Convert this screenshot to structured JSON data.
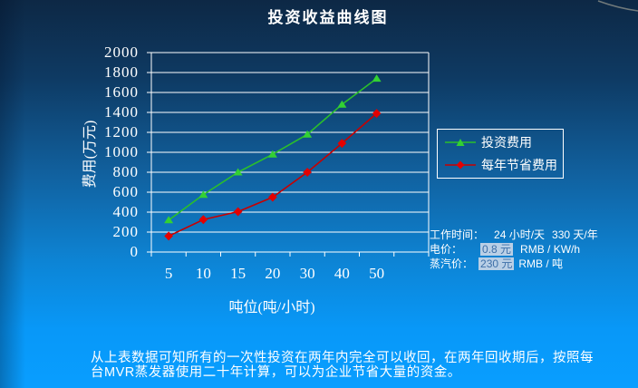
{
  "slide": {
    "title": "投资收益曲线图",
    "footer_text": "从上表数据可知所有的一次性投资在两年内完全可以收回，在两年回收期后，按照每\n台MVR蒸发器使用二十年计算，可以为企业节省大量的资金。"
  },
  "chart_data": {
    "type": "line",
    "title": "投资收益曲线图",
    "categories": [
      "5",
      "10",
      "15",
      "20",
      "30",
      "40",
      "50"
    ],
    "series": [
      {
        "name": "投资费用",
        "color": "#33d133",
        "line_color": "#2bbf2b",
        "marker": "triangle",
        "values": [
          320,
          575,
          800,
          980,
          1180,
          1480,
          1740
        ]
      },
      {
        "name": "每年节省费用",
        "color": "#e30000",
        "line_color": "#c80000",
        "marker": "diamond",
        "values": [
          160,
          325,
          405,
          550,
          800,
          1090,
          1390
        ]
      }
    ],
    "xlabel": "吨位(吨/小时)",
    "ylabel": "费用(万元)",
    "ylim": [
      0,
      2000
    ],
    "ytick_step": 200,
    "grid": true,
    "gridline_color": "#ffffff",
    "legend_position": "right"
  },
  "info_panel": {
    "work_time_label": "工作时间：",
    "work_time_hours": "24 小时/天",
    "work_time_days": "330 天/年",
    "electricity_label": "电价：",
    "electricity_value": "0.8 元",
    "electricity_unit": "RMB / KW/h",
    "steam_label": "蒸汽价：",
    "steam_value": "230 元",
    "steam_unit": "RMB / 吨"
  },
  "colors": {
    "background_top": "#0d2845",
    "background_bottom": "#099eff",
    "text": "#ffffff",
    "highlight_bg": "#b9cfe6",
    "highlight_text": "#3d6fa8"
  }
}
